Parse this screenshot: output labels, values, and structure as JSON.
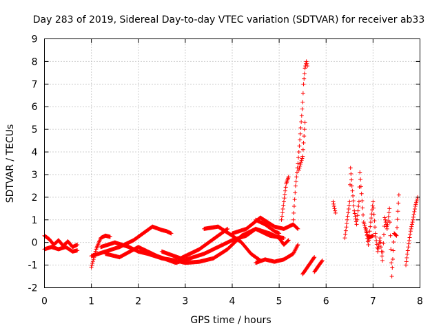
{
  "chart_data": {
    "type": "scatter",
    "title": "Day 283 of 2019, Sidereal Day-to-day VTEC variation (SDTVAR) for receiver ab33",
    "xlabel": "GPS time / hours",
    "ylabel": "SDTVAR / TECUs",
    "xlim": [
      0,
      8
    ],
    "ylim": [
      -2,
      9
    ],
    "xticks": [
      "0",
      "1",
      "2",
      "3",
      "4",
      "5",
      "6",
      "7",
      "8"
    ],
    "yticks": [
      "-2",
      "-1",
      "0",
      "1",
      "2",
      "3",
      "4",
      "5",
      "6",
      "7",
      "8",
      "9"
    ],
    "grid": true,
    "marker": "+",
    "series": [
      {
        "name": "SDTVAR",
        "color": "#ff0000",
        "tracks": [
          [
            [
              0.0,
              0.3
            ],
            [
              0.1,
              0.15
            ],
            [
              0.2,
              -0.1
            ],
            [
              0.3,
              0.1
            ],
            [
              0.4,
              -0.15
            ],
            [
              0.5,
              0.05
            ],
            [
              0.6,
              -0.2
            ],
            [
              0.7,
              -0.1
            ]
          ],
          [
            [
              0.0,
              -0.3
            ],
            [
              0.15,
              -0.2
            ],
            [
              0.3,
              -0.3
            ],
            [
              0.45,
              -0.2
            ],
            [
              0.6,
              -0.4
            ],
            [
              0.7,
              -0.35
            ]
          ],
          [
            [
              1.0,
              -1.1
            ],
            [
              1.1,
              -0.3
            ],
            [
              1.2,
              0.2
            ],
            [
              1.3,
              0.3
            ],
            [
              1.4,
              0.25
            ]
          ],
          [
            [
              1.0,
              -0.6
            ],
            [
              1.3,
              -0.4
            ],
            [
              1.6,
              -0.2
            ],
            [
              1.9,
              0.1
            ],
            [
              2.1,
              0.4
            ],
            [
              2.3,
              0.7
            ],
            [
              2.5,
              0.55
            ],
            [
              2.6,
              0.5
            ],
            [
              2.7,
              0.4
            ]
          ],
          [
            [
              1.2,
              -0.2
            ],
            [
              1.5,
              0.0
            ],
            [
              1.8,
              -0.2
            ],
            [
              2.0,
              -0.4
            ],
            [
              2.2,
              -0.5
            ],
            [
              2.5,
              -0.7
            ],
            [
              2.8,
              -0.8
            ],
            [
              3.0,
              -0.9
            ],
            [
              3.3,
              -0.85
            ],
            [
              3.6,
              -0.7
            ],
            [
              3.9,
              -0.3
            ],
            [
              4.2,
              0.3
            ],
            [
              4.5,
              0.6
            ],
            [
              4.8,
              0.4
            ],
            [
              5.0,
              0.2
            ],
            [
              5.1,
              -0.1
            ],
            [
              5.2,
              0.1
            ]
          ],
          [
            [
              1.3,
              -0.5
            ],
            [
              1.6,
              -0.65
            ],
            [
              2.0,
              -0.2
            ],
            [
              2.4,
              -0.6
            ],
            [
              2.8,
              -0.9
            ],
            [
              3.1,
              -0.7
            ],
            [
              3.4,
              -0.5
            ],
            [
              3.7,
              -0.2
            ],
            [
              4.0,
              0.1
            ],
            [
              4.3,
              0.3
            ],
            [
              4.5,
              0.6
            ],
            [
              4.8,
              0.3
            ],
            [
              5.1,
              0.2
            ]
          ],
          [
            [
              2.5,
              -0.4
            ],
            [
              2.9,
              -0.7
            ],
            [
              3.3,
              -0.3
            ],
            [
              3.7,
              0.3
            ],
            [
              3.9,
              0.6
            ]
          ],
          [
            [
              3.4,
              0.6
            ],
            [
              3.7,
              0.7
            ],
            [
              4.0,
              0.3
            ],
            [
              4.2,
              0.0
            ],
            [
              4.4,
              -0.5
            ],
            [
              4.6,
              -0.8
            ]
          ],
          [
            [
              4.0,
              0.4
            ],
            [
              4.3,
              0.6
            ],
            [
              4.6,
              1.1
            ],
            [
              4.9,
              0.7
            ],
            [
              5.1,
              0.6
            ],
            [
              5.3,
              0.8
            ],
            [
              5.4,
              0.6
            ]
          ],
          [
            [
              4.5,
              1.0
            ],
            [
              4.7,
              0.8
            ],
            [
              4.9,
              0.5
            ],
            [
              5.0,
              0.4
            ]
          ],
          [
            [
              4.5,
              -0.9
            ],
            [
              4.7,
              -0.75
            ],
            [
              4.9,
              -0.85
            ],
            [
              5.1,
              -0.75
            ],
            [
              5.3,
              -0.5
            ],
            [
              5.4,
              -0.1
            ]
          ],
          [
            [
              5.05,
              1.0
            ],
            [
              5.1,
              1.8
            ],
            [
              5.15,
              2.6
            ],
            [
              5.2,
              2.9
            ]
          ],
          [
            [
              5.3,
              1.0
            ],
            [
              5.35,
              2.5
            ],
            [
              5.4,
              3.5
            ],
            [
              5.42,
              4.0
            ],
            [
              5.45,
              4.8
            ],
            [
              5.48,
              5.6
            ],
            [
              5.5,
              6.2
            ],
            [
              5.52,
              7.0
            ],
            [
              5.55,
              7.7
            ],
            [
              5.58,
              8.0
            ],
            [
              5.6,
              7.8
            ]
          ],
          [
            [
              5.42,
              3.2
            ],
            [
              5.5,
              3.8
            ],
            [
              5.52,
              4.4
            ],
            [
              5.55,
              5.3
            ]
          ],
          [
            [
              5.5,
              -1.4
            ],
            [
              5.6,
              -1.1
            ],
            [
              5.7,
              -0.8
            ],
            [
              5.75,
              -0.65
            ]
          ],
          [
            [
              5.75,
              -1.3
            ],
            [
              5.85,
              -1.0
            ],
            [
              5.92,
              -0.8
            ]
          ],
          [
            [
              6.15,
              1.8
            ],
            [
              6.18,
              1.5
            ],
            [
              6.2,
              1.3
            ]
          ],
          [
            [
              6.4,
              0.2
            ],
            [
              6.45,
              1.0
            ],
            [
              6.5,
              1.8
            ],
            [
              6.52,
              3.3
            ],
            [
              6.55,
              2.5
            ],
            [
              6.6,
              1.4
            ],
            [
              6.65,
              0.8
            ],
            [
              6.7,
              1.8
            ],
            [
              6.72,
              3.1
            ],
            [
              6.8,
              0.9
            ],
            [
              6.9,
              0.2
            ],
            [
              7.0,
              0.3
            ]
          ],
          [
            [
              6.85,
              0.6
            ],
            [
              6.9,
              -0.1
            ],
            [
              6.95,
              0.9
            ],
            [
              7.0,
              1.8
            ],
            [
              7.05,
              0.4
            ],
            [
              7.1,
              -0.4
            ],
            [
              7.15,
              0.2
            ],
            [
              7.2,
              -0.8
            ],
            [
              7.25,
              1.1
            ],
            [
              7.3,
              0.6
            ],
            [
              7.35,
              1.5
            ],
            [
              7.4,
              -1.5
            ],
            [
              7.45,
              0.4
            ],
            [
              7.5,
              0.3
            ],
            [
              7.55,
              2.1
            ]
          ],
          [
            [
              7.7,
              -1.0
            ],
            [
              7.75,
              -0.2
            ],
            [
              7.8,
              0.5
            ],
            [
              7.85,
              1.0
            ],
            [
              7.9,
              1.6
            ],
            [
              7.95,
              2.0
            ]
          ]
        ]
      }
    ]
  }
}
